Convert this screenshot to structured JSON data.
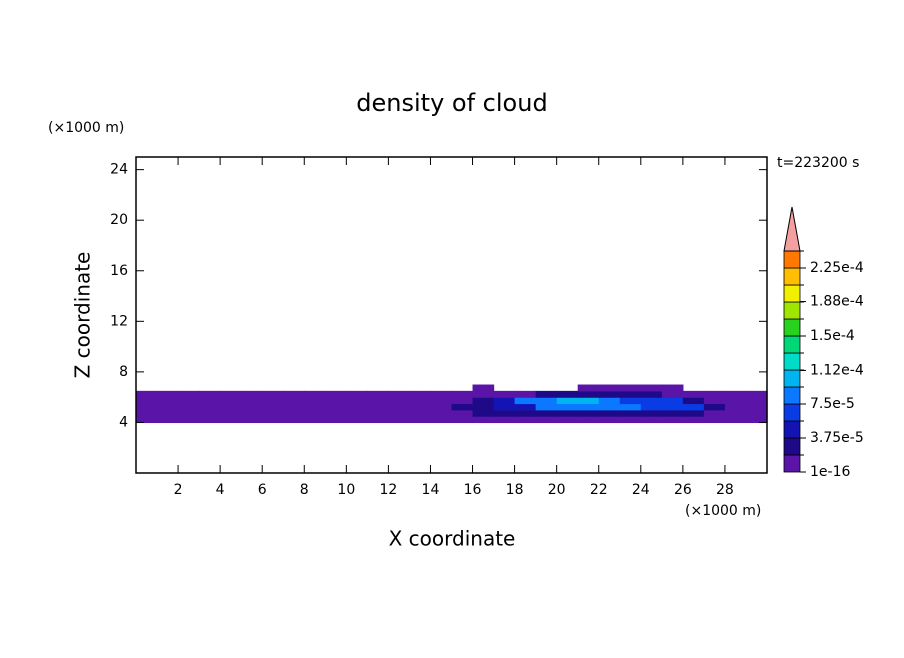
{
  "chart_data": {
    "type": "contour",
    "title": "density of cloud",
    "x_label": "X coordinate",
    "y_label": "Z coordinate",
    "x_unit": "(×1000 m)",
    "y_unit": "(×1000 m)",
    "time_label": "t=223200 s",
    "xlim": [
      0,
      30
    ],
    "ylim": [
      0,
      25
    ],
    "xticks": [
      2,
      4,
      6,
      8,
      10,
      12,
      14,
      16,
      18,
      20,
      22,
      24,
      26,
      28
    ],
    "yticks": [
      4,
      8,
      12,
      16,
      20,
      24
    ],
    "levels": [
      1e-16,
      1.875e-05,
      3.75e-05,
      5.625e-05,
      7.5e-05,
      9.375e-05,
      0.0001125,
      0.00013125,
      0.00015,
      0.00016875,
      0.0001875,
      0.00020625,
      0.000225,
      0.00024375
    ],
    "colors": [
      "#5a14a8",
      "#1e0a88",
      "#1414b4",
      "#0a3ce6",
      "#0a78ff",
      "#00b4f0",
      "#00dcc8",
      "#00d878",
      "#28d21e",
      "#a0e600",
      "#f0f000",
      "#ffbe00",
      "#ff7800"
    ],
    "extend_color": "#f4a0a0",
    "colorbar_ticks": [
      {
        "value": 1e-16,
        "label": "1e-16"
      },
      {
        "value": 3.75e-05,
        "label": "3.75e-5"
      },
      {
        "value": 7.5e-05,
        "label": "7.5e-5"
      },
      {
        "value": 0.000112,
        "label": "1.12e-4"
      },
      {
        "value": 0.00015,
        "label": "1.5e-4"
      },
      {
        "value": 0.000188,
        "label": "1.88e-4"
      },
      {
        "value": 0.000225,
        "label": "2.25e-4"
      }
    ],
    "field": {
      "x": [
        0.5,
        1.5,
        2.5,
        3.5,
        4.5,
        5.5,
        6.5,
        7.5,
        8.5,
        9.5,
        10.5,
        11.5,
        12.5,
        13.5,
        14.5,
        15.5,
        16.5,
        17.5,
        18.5,
        19.5,
        20.5,
        21.5,
        22.5,
        23.5,
        24.5,
        25.5,
        26.5,
        27.5,
        28.5,
        29.5
      ],
      "z": [
        4.25,
        4.75,
        5.25,
        5.75,
        6.25,
        6.75
      ],
      "values": [
        [
          1e-05,
          1e-05,
          1e-05,
          1e-05,
          1e-05,
          1e-05,
          1e-05,
          1e-05,
          1e-05,
          1e-05,
          1e-05,
          1e-05,
          1e-05,
          1e-05,
          1e-05,
          1e-05,
          1e-05,
          1e-05,
          1e-05,
          1e-05,
          1e-05,
          1e-05,
          1e-05,
          1e-05,
          1e-05,
          1e-05,
          1e-05,
          1e-05,
          1e-05,
          1e-05
        ],
        [
          1e-05,
          1e-05,
          1e-05,
          1e-05,
          1e-05,
          1e-05,
          1e-05,
          1e-05,
          1e-05,
          1e-05,
          1e-05,
          1e-05,
          1e-05,
          1e-05,
          1e-05,
          1e-05,
          3e-05,
          3e-05,
          3e-05,
          3e-05,
          3e-05,
          3e-05,
          3e-05,
          3e-05,
          3e-05,
          3e-05,
          3e-05,
          1e-05,
          1e-05,
          1e-05
        ],
        [
          1e-05,
          1e-05,
          1e-05,
          1e-05,
          1e-05,
          1e-05,
          1e-05,
          1e-05,
          1e-05,
          1e-05,
          1e-05,
          1e-05,
          1e-05,
          1e-05,
          1e-05,
          2e-05,
          2.5e-05,
          5e-05,
          5e-05,
          8e-05,
          8e-05,
          8e-05,
          8e-05,
          8e-05,
          6e-05,
          6e-05,
          6e-05,
          3e-05,
          1e-05,
          1e-05
        ],
        [
          1e-05,
          1e-05,
          1e-05,
          1e-05,
          1e-05,
          1e-05,
          1e-05,
          1e-05,
          1e-05,
          1e-05,
          1e-05,
          1e-05,
          1e-05,
          1e-05,
          1e-05,
          1e-05,
          2e-05,
          4e-05,
          9e-05,
          9e-05,
          0.00011,
          0.00011,
          9e-05,
          6e-05,
          6e-05,
          6e-05,
          3e-05,
          1e-05,
          1e-05,
          1e-05
        ],
        [
          1e-05,
          1e-05,
          1e-05,
          1e-05,
          1e-05,
          1e-05,
          1e-05,
          1e-05,
          1e-05,
          1e-05,
          1e-05,
          1e-05,
          1e-05,
          1e-05,
          1e-05,
          1e-05,
          1e-05,
          1e-05,
          1e-05,
          2.5e-05,
          2.5e-05,
          2.5e-05,
          2.5e-05,
          2.5e-05,
          2.5e-05,
          1e-05,
          1e-05,
          1e-05,
          1e-05,
          1e-05
        ],
        [
          0,
          0,
          0,
          0,
          0,
          0,
          0,
          0,
          0,
          0,
          0,
          0,
          0,
          0,
          0,
          0,
          1e-05,
          0,
          0,
          0,
          0,
          1e-05,
          1e-05,
          1e-05,
          1e-05,
          1e-05,
          0,
          0,
          0,
          0
        ]
      ]
    }
  }
}
